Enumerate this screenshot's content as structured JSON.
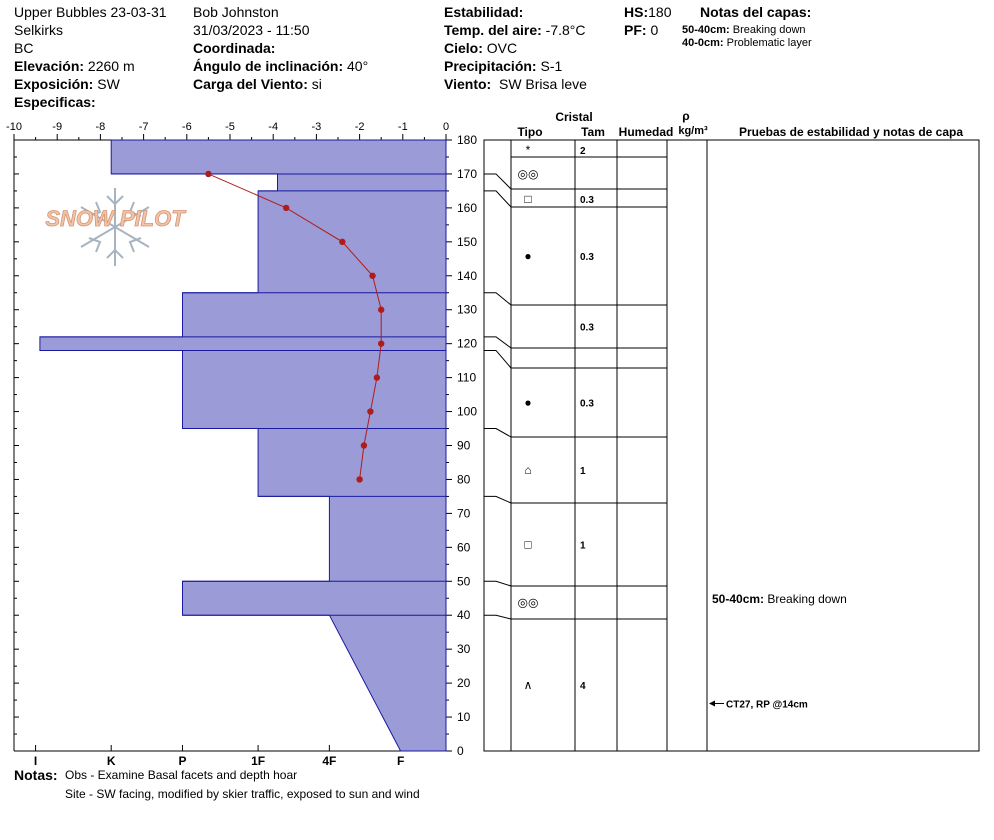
{
  "header": {
    "location": "Upper Bubbles 23-03-31",
    "range": "Selkirks",
    "province": "BC",
    "elevation_label": "Elevación:",
    "elevation_value": "2260 m",
    "exposure_label": "Exposición:",
    "exposure_value": "SW",
    "specifics_label": "Especificas:",
    "observer": "Bob Johnston",
    "datetime": "31/03/2023 - 11:50",
    "coord_label": "Coordinada:",
    "slope_label": "Ángulo de inclinación:",
    "slope_value": "40°",
    "wind_load_label": "Carga del Viento:",
    "wind_load_value": "si",
    "stability_label": "Estabilidad:",
    "air_temp_label": "Temp. del aire:",
    "air_temp_value": "-7.8°C",
    "sky_label": "Cielo:",
    "sky_value": "OVC",
    "precip_label": "Precipitación:",
    "precip_value": "S-1",
    "wind_label": "Viento:",
    "wind_value": "SW Brisa leve",
    "hs_label": "HS:",
    "hs_value": "180",
    "pf_label": "PF:",
    "pf_value": "0",
    "layer_notes_title": "Notas del capas:",
    "layer_notes": [
      {
        "range": "50-40cm:",
        "text": "Breaking down"
      },
      {
        "range": "40-0cm:",
        "text": "Problematic layer"
      }
    ]
  },
  "logo_text": "SNOW PILOT",
  "columns": {
    "crystal": "Cristal",
    "type": "Tipo",
    "size": "Tam",
    "moisture": "Humedad",
    "rho": "ρ",
    "density_unit": "kg/m³",
    "tests": "Pruebas de estabilidad y notas de capa"
  },
  "notes": {
    "label": "Notas:",
    "lines": [
      "Obs - Examine Basal facets and depth hoar",
      "Site - SW facing, modified by skier traffic, exposed to sun and wind"
    ]
  },
  "tests": [
    {
      "text": "CT27, RP @14cm",
      "depth": 14
    }
  ],
  "layer_comments": [
    {
      "range": "50-40cm:",
      "text": "Breaking down",
      "depth": 43
    }
  ],
  "chart_data": {
    "type": "snow-profile",
    "temperature_axis": {
      "ticks": [
        -10,
        -9,
        -8,
        -7,
        -6,
        -5,
        -4,
        -3,
        -2,
        -1,
        0
      ],
      "range": [
        -10,
        0
      ]
    },
    "height_axis": {
      "ticks": [
        0,
        10,
        20,
        30,
        40,
        50,
        60,
        70,
        80,
        90,
        100,
        110,
        120,
        130,
        140,
        150,
        160,
        170,
        180
      ],
      "range": [
        0,
        180
      ]
    },
    "hardness_axis": {
      "labels": [
        "I",
        "K",
        "P",
        "1F",
        "4F",
        "F"
      ],
      "values": [
        -9.5,
        -7.75,
        -6.1,
        -4.35,
        -2.7,
        -1.05
      ]
    },
    "temperature_profile": [
      {
        "height": 170,
        "temp": -5.5
      },
      {
        "height": 160,
        "temp": -3.7
      },
      {
        "height": 150,
        "temp": -2.4
      },
      {
        "height": 140,
        "temp": -1.7
      },
      {
        "height": 130,
        "temp": -1.5
      },
      {
        "height": 120,
        "temp": -1.5
      },
      {
        "height": 110,
        "temp": -1.6
      },
      {
        "height": 100,
        "temp": -1.75
      },
      {
        "height": 90,
        "temp": -1.9
      },
      {
        "height": 80,
        "temp": -2.0
      }
    ],
    "hardness_layers": [
      {
        "top": 180,
        "bottom": 170,
        "hardness": "K+"
      },
      {
        "top": 170,
        "bottom": 165,
        "hardness": "1F+"
      },
      {
        "top": 165,
        "bottom": 135,
        "hardness": "1F"
      },
      {
        "top": 135,
        "bottom": 122,
        "hardness": "P"
      },
      {
        "top": 122,
        "bottom": 118,
        "hardness": "I"
      },
      {
        "top": 118,
        "bottom": 95,
        "hardness": "P"
      },
      {
        "top": 95,
        "bottom": 75,
        "hardness": "1F"
      },
      {
        "top": 75,
        "bottom": 50,
        "hardness": "4F"
      },
      {
        "top": 50,
        "bottom": 40,
        "hardness": "P"
      },
      {
        "top": 40,
        "bottom": 0,
        "hardness": "4F-F"
      }
    ],
    "layer_profile": [
      {
        "t": -7.75,
        "h": 180
      },
      {
        "t": -7.75,
        "h": 170
      },
      {
        "t": -3.9,
        "h": 170
      },
      {
        "t": -3.9,
        "h": 165
      },
      {
        "t": -4.35,
        "h": 165
      },
      {
        "t": -4.35,
        "h": 135
      },
      {
        "t": -6.1,
        "h": 135
      },
      {
        "t": -6.1,
        "h": 122
      },
      {
        "t": -9.4,
        "h": 122
      },
      {
        "t": -9.4,
        "h": 118
      },
      {
        "t": -6.1,
        "h": 118
      },
      {
        "t": -6.1,
        "h": 95
      },
      {
        "t": -4.35,
        "h": 95
      },
      {
        "t": -4.35,
        "h": 75
      },
      {
        "t": -2.7,
        "h": 75
      },
      {
        "t": -2.7,
        "h": 50
      },
      {
        "t": -6.1,
        "h": 50
      },
      {
        "t": -6.1,
        "h": 40
      },
      {
        "t": -2.7,
        "h": 40
      },
      {
        "t": -1.05,
        "h": 0
      }
    ],
    "layer_boundaries": [
      180,
      170,
      165,
      135,
      122,
      118,
      95,
      75,
      50,
      40,
      0
    ],
    "crystal_layers": [
      {
        "top": 180,
        "bottom": 178,
        "grain": "*",
        "grain_name": "asterisk-icon",
        "size": "2"
      },
      {
        "top": 178,
        "bottom": 170,
        "grain": "◎◎",
        "grain_name": "melt-forms-icon",
        "size": ""
      },
      {
        "top": 170,
        "bottom": 165,
        "grain": "□",
        "grain_name": "faceted-crystal-icon",
        "size": "0.3"
      },
      {
        "top": 165,
        "bottom": 135,
        "grain": "●",
        "grain_name": "rounded-grain-icon",
        "size": "0.3"
      },
      {
        "top": 135,
        "bottom": 122,
        "grain": "",
        "grain_name": "none",
        "size": "0.3"
      },
      {
        "top": 122,
        "bottom": 118,
        "grain": "",
        "grain_name": "none",
        "size": ""
      },
      {
        "top": 118,
        "bottom": 95,
        "grain": "●",
        "grain_name": "rounded-grain-icon",
        "size": "0.3"
      },
      {
        "top": 95,
        "bottom": 75,
        "grain": "⌂",
        "grain_name": "mixed-form-icon",
        "size": "1"
      },
      {
        "top": 75,
        "bottom": 50,
        "grain": "□",
        "grain_name": "faceted-crystal-icon",
        "size": "1"
      },
      {
        "top": 50,
        "bottom": 40,
        "grain": "◎◎",
        "grain_name": "melt-forms-icon",
        "size": ""
      },
      {
        "top": 40,
        "bottom": 0,
        "grain": "∧",
        "grain_name": "depth-hoar-icon",
        "size": "4"
      }
    ],
    "colors": {
      "layer_fill": "#9b9bd7",
      "layer_stroke": "#1a1aa0",
      "temperature": "#b01c1c"
    }
  }
}
